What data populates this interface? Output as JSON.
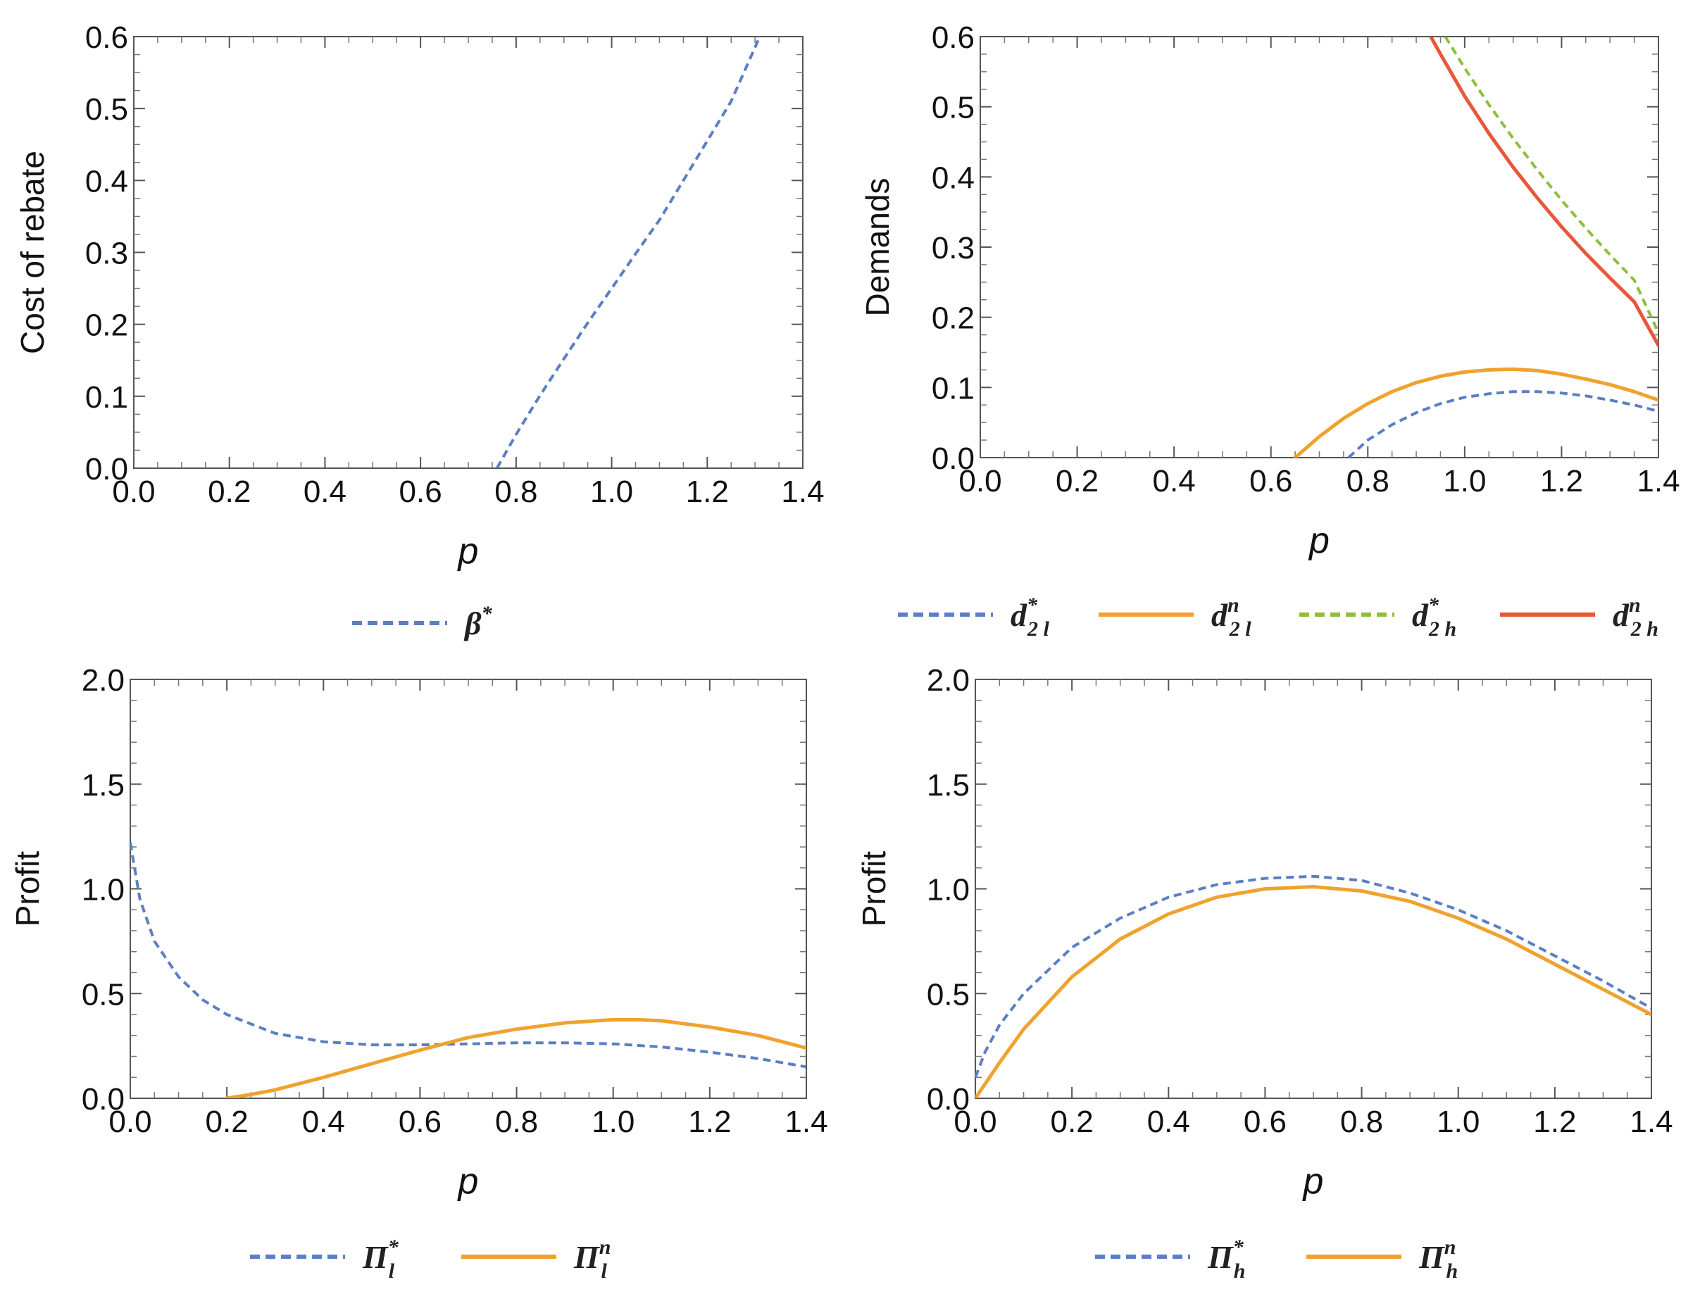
{
  "chart_data": [
    {
      "type": "line",
      "ylabel": "Cost of rebate",
      "xlabel": "p",
      "xlim": [
        0,
        1.4
      ],
      "ylim": [
        0,
        0.6
      ],
      "xticks": [
        "0.0",
        "0.2",
        "0.4",
        "0.6",
        "0.8",
        "1.0",
        "1.2",
        "1.4"
      ],
      "yticks": [
        "0.0",
        "0.1",
        "0.2",
        "0.3",
        "0.4",
        "0.5",
        "0.6"
      ],
      "series": [
        {
          "name": "β*",
          "legend_main": "β",
          "legend_sup": "*",
          "legend_sub": "",
          "color": "#5b7fc4",
          "dashed": true,
          "x": [
            0.76,
            0.8,
            0.85,
            0.9,
            0.95,
            1.0,
            1.05,
            1.1,
            1.15,
            1.2,
            1.25,
            1.31
          ],
          "y": [
            0.0,
            0.047,
            0.101,
            0.152,
            0.202,
            0.25,
            0.298,
            0.345,
            0.4,
            0.455,
            0.51,
            0.6
          ]
        }
      ]
    },
    {
      "type": "line",
      "ylabel": "Demands",
      "xlabel": "p",
      "xlim": [
        0,
        1.4
      ],
      "ylim": [
        0,
        0.6
      ],
      "xticks": [
        "0.0",
        "0.2",
        "0.4",
        "0.6",
        "0.8",
        "1.0",
        "1.2",
        "1.4"
      ],
      "yticks": [
        "0.0",
        "0.1",
        "0.2",
        "0.3",
        "0.4",
        "0.5",
        "0.6"
      ],
      "series": [
        {
          "name": "d*2l",
          "legend_main": "d",
          "legend_sup": "*",
          "legend_sub": "2 l",
          "color": "#5b7fc4",
          "dashed": true,
          "x": [
            0.76,
            0.8,
            0.85,
            0.9,
            0.95,
            1.0,
            1.05,
            1.1,
            1.15,
            1.2,
            1.25,
            1.3,
            1.35,
            1.4
          ],
          "y": [
            0.0,
            0.025,
            0.047,
            0.064,
            0.077,
            0.086,
            0.091,
            0.094,
            0.094,
            0.092,
            0.088,
            0.082,
            0.075,
            0.066
          ]
        },
        {
          "name": "dn2l",
          "legend_main": "d",
          "legend_sup": "n",
          "legend_sub": "2 l",
          "color": "#f0a22e",
          "dashed": false,
          "x": [
            0.65,
            0.7,
            0.75,
            0.8,
            0.85,
            0.9,
            0.95,
            1.0,
            1.05,
            1.1,
            1.15,
            1.2,
            1.25,
            1.3,
            1.35,
            1.4
          ],
          "y": [
            0.0,
            0.03,
            0.056,
            0.077,
            0.094,
            0.107,
            0.116,
            0.122,
            0.125,
            0.126,
            0.124,
            0.119,
            0.112,
            0.104,
            0.094,
            0.082
          ]
        },
        {
          "name": "d*2h",
          "legend_main": "d",
          "legend_sup": "*",
          "legend_sub": "2 h",
          "color": "#8dbf3c",
          "dashed": true,
          "x": [
            0.96,
            1.0,
            1.05,
            1.1,
            1.15,
            1.2,
            1.25,
            1.3,
            1.35,
            1.4
          ],
          "y": [
            0.6,
            0.555,
            0.503,
            0.455,
            0.41,
            0.367,
            0.327,
            0.289,
            0.253,
            0.178
          ]
        },
        {
          "name": "dn2h",
          "legend_main": "d",
          "legend_sup": "n",
          "legend_sub": "2 h",
          "color": "#e8573a",
          "dashed": false,
          "x": [
            0.93,
            0.95,
            1.0,
            1.05,
            1.1,
            1.15,
            1.2,
            1.25,
            1.3,
            1.35,
            1.4
          ],
          "y": [
            0.6,
            0.575,
            0.515,
            0.462,
            0.414,
            0.37,
            0.329,
            0.291,
            0.256,
            0.222,
            0.16
          ]
        }
      ]
    },
    {
      "type": "line",
      "ylabel": "Profit",
      "xlabel": "p",
      "xlim": [
        0,
        1.4
      ],
      "ylim": [
        0,
        2.0
      ],
      "xticks": [
        "0.0",
        "0.2",
        "0.4",
        "0.6",
        "0.8",
        "1.0",
        "1.2",
        "1.4"
      ],
      "yticks": [
        "0.0",
        "0.5",
        "1.0",
        "1.5",
        "2.0"
      ],
      "series": [
        {
          "name": "Π*l",
          "legend_main": "Π",
          "legend_sup": "*",
          "legend_sub": "l",
          "color": "#5b7fc4",
          "dashed": true,
          "x": [
            0.0,
            0.02,
            0.05,
            0.1,
            0.15,
            0.2,
            0.3,
            0.4,
            0.5,
            0.6,
            0.7,
            0.8,
            0.9,
            1.0,
            1.1,
            1.2,
            1.3,
            1.4
          ],
          "y": [
            1.22,
            0.95,
            0.75,
            0.58,
            0.47,
            0.4,
            0.31,
            0.27,
            0.255,
            0.255,
            0.26,
            0.265,
            0.265,
            0.26,
            0.245,
            0.22,
            0.19,
            0.15
          ]
        },
        {
          "name": "Πnl",
          "legend_main": "Π",
          "legend_sup": "n",
          "legend_sub": "l",
          "color": "#f0a22e",
          "dashed": false,
          "x": [
            0.2,
            0.25,
            0.3,
            0.4,
            0.5,
            0.6,
            0.7,
            0.8,
            0.9,
            1.0,
            1.05,
            1.1,
            1.2,
            1.3,
            1.4
          ],
          "y": [
            0.0,
            0.018,
            0.04,
            0.1,
            0.165,
            0.23,
            0.29,
            0.33,
            0.36,
            0.375,
            0.375,
            0.37,
            0.34,
            0.3,
            0.24
          ]
        }
      ]
    },
    {
      "type": "line",
      "ylabel": "Profit",
      "xlabel": "p",
      "xlim": [
        0,
        1.4
      ],
      "ylim": [
        0,
        2.0
      ],
      "xticks": [
        "0.0",
        "0.2",
        "0.4",
        "0.6",
        "0.8",
        "1.0",
        "1.2",
        "1.4"
      ],
      "yticks": [
        "0.0",
        "0.5",
        "1.0",
        "1.5",
        "2.0"
      ],
      "series": [
        {
          "name": "Π*h",
          "legend_main": "Π",
          "legend_sup": "*",
          "legend_sub": "h",
          "color": "#5b7fc4",
          "dashed": true,
          "x": [
            0.0,
            0.02,
            0.05,
            0.1,
            0.2,
            0.3,
            0.4,
            0.5,
            0.6,
            0.7,
            0.8,
            0.9,
            1.0,
            1.1,
            1.2,
            1.3,
            1.4
          ],
          "y": [
            0.1,
            0.22,
            0.35,
            0.5,
            0.72,
            0.86,
            0.96,
            1.02,
            1.05,
            1.06,
            1.04,
            0.98,
            0.9,
            0.8,
            0.68,
            0.56,
            0.43
          ]
        },
        {
          "name": "Πnh",
          "legend_main": "Π",
          "legend_sup": "n",
          "legend_sub": "h",
          "color": "#f0a22e",
          "dashed": false,
          "x": [
            0.0,
            0.05,
            0.1,
            0.2,
            0.3,
            0.4,
            0.5,
            0.6,
            0.7,
            0.8,
            0.9,
            1.0,
            1.1,
            1.2,
            1.3,
            1.4
          ],
          "y": [
            0.0,
            0.17,
            0.33,
            0.58,
            0.76,
            0.88,
            0.96,
            1.0,
            1.01,
            0.99,
            0.94,
            0.86,
            0.76,
            0.64,
            0.52,
            0.4
          ]
        }
      ]
    }
  ]
}
